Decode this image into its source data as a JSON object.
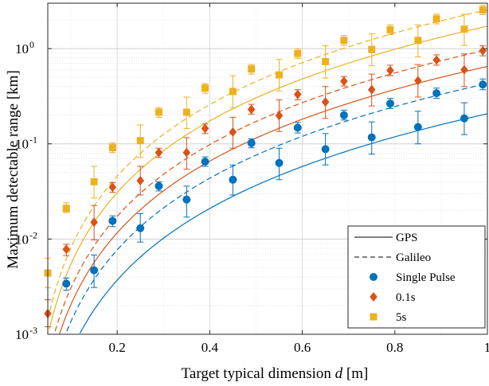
{
  "chart_data": {
    "type": "scatter",
    "xlabel_prefix": "Target typical dimension ",
    "xlabel_var": "d",
    "xlabel_suffix": " [m]",
    "ylabel": "Maximum detectable range [km]",
    "xlim": [
      0.05,
      1.0
    ],
    "ylim": [
      0.001,
      3.0
    ],
    "yscale": "log",
    "grid": true,
    "legend_position": "lower-right",
    "xticks": [
      0.2,
      0.4,
      0.6,
      0.8,
      1.0
    ],
    "xtick_labels": [
      "0.2",
      "0.4",
      "0.6",
      "0.8",
      "1"
    ],
    "yticks": [
      0.001,
      0.01,
      0.1,
      1
    ],
    "ytick_base": [
      "10",
      "10",
      "10",
      "10"
    ],
    "ytick_exp": [
      "-3",
      "-2",
      "-1",
      "0"
    ],
    "colors": {
      "single": "#0072BD",
      "tenth": "#D95319",
      "five": "#EDB120"
    },
    "legend": [
      {
        "label": "GPS",
        "kind": "solid-line"
      },
      {
        "label": "Galileo",
        "kind": "dashed-line"
      },
      {
        "label": "Single Pulse",
        "kind": "circle",
        "color": "#0072BD"
      },
      {
        "label": "0.1s",
        "kind": "diamond",
        "color": "#D95319"
      },
      {
        "label": "5s",
        "kind": "square",
        "color": "#EDB120"
      }
    ],
    "curves": [
      {
        "name": "GPS",
        "style": "solid",
        "color": "#0072BD",
        "coef": 0.207,
        "exp": 2.5
      },
      {
        "name": "Galileo",
        "style": "dashed",
        "color": "#0072BD",
        "coef": 0.43,
        "exp": 2.5
      },
      {
        "name": "GPS",
        "style": "solid",
        "color": "#D95319",
        "coef": 0.65,
        "exp": 2.5
      },
      {
        "name": "Galileo",
        "style": "dashed",
        "color": "#D95319",
        "coef": 0.97,
        "exp": 2.5
      },
      {
        "name": "GPS",
        "style": "solid",
        "color": "#EDB120",
        "coef": 1.72,
        "exp": 2.5
      },
      {
        "name": "Galileo",
        "style": "dashed",
        "color": "#EDB120",
        "coef": 2.55,
        "exp": 2.5
      }
    ],
    "series": [
      {
        "name": "Single Pulse",
        "marker": "circle",
        "color": "#0072BD",
        "points": [
          {
            "x": 0.09,
            "y": 0.0034,
            "lo": 0.0029,
            "hi": 0.0039
          },
          {
            "x": 0.15,
            "y": 0.0047,
            "lo": 0.0031,
            "hi": 0.0068
          },
          {
            "x": 0.19,
            "y": 0.0155,
            "lo": 0.0135,
            "hi": 0.0175
          },
          {
            "x": 0.25,
            "y": 0.013,
            "lo": 0.0093,
            "hi": 0.0185
          },
          {
            "x": 0.29,
            "y": 0.036,
            "lo": 0.032,
            "hi": 0.04
          },
          {
            "x": 0.35,
            "y": 0.026,
            "lo": 0.017,
            "hi": 0.036
          },
          {
            "x": 0.39,
            "y": 0.065,
            "lo": 0.058,
            "hi": 0.073
          },
          {
            "x": 0.45,
            "y": 0.042,
            "lo": 0.029,
            "hi": 0.06
          },
          {
            "x": 0.49,
            "y": 0.102,
            "lo": 0.091,
            "hi": 0.113
          },
          {
            "x": 0.55,
            "y": 0.063,
            "lo": 0.042,
            "hi": 0.09
          },
          {
            "x": 0.59,
            "y": 0.148,
            "lo": 0.13,
            "hi": 0.168
          },
          {
            "x": 0.65,
            "y": 0.088,
            "lo": 0.06,
            "hi": 0.128
          },
          {
            "x": 0.69,
            "y": 0.2,
            "lo": 0.178,
            "hi": 0.226
          },
          {
            "x": 0.75,
            "y": 0.117,
            "lo": 0.078,
            "hi": 0.17
          },
          {
            "x": 0.79,
            "y": 0.265,
            "lo": 0.235,
            "hi": 0.3
          },
          {
            "x": 0.85,
            "y": 0.15,
            "lo": 0.1,
            "hi": 0.22
          },
          {
            "x": 0.89,
            "y": 0.34,
            "lo": 0.3,
            "hi": 0.385
          },
          {
            "x": 0.95,
            "y": 0.185,
            "lo": 0.125,
            "hi": 0.27
          },
          {
            "x": 0.99,
            "y": 0.42,
            "lo": 0.37,
            "hi": 0.48
          }
        ]
      },
      {
        "name": "0.1s",
        "marker": "diamond",
        "color": "#D95319",
        "points": [
          {
            "x": 0.05,
            "y": 0.00165,
            "lo": 0.0012,
            "hi": 0.0023
          },
          {
            "x": 0.09,
            "y": 0.0078,
            "lo": 0.0067,
            "hi": 0.0088
          },
          {
            "x": 0.15,
            "y": 0.015,
            "lo": 0.0098,
            "hi": 0.0225
          },
          {
            "x": 0.19,
            "y": 0.035,
            "lo": 0.031,
            "hi": 0.039
          },
          {
            "x": 0.25,
            "y": 0.041,
            "lo": 0.029,
            "hi": 0.058
          },
          {
            "x": 0.29,
            "y": 0.081,
            "lo": 0.072,
            "hi": 0.09
          },
          {
            "x": 0.35,
            "y": 0.081,
            "lo": 0.054,
            "hi": 0.116
          },
          {
            "x": 0.39,
            "y": 0.145,
            "lo": 0.128,
            "hi": 0.162
          },
          {
            "x": 0.45,
            "y": 0.133,
            "lo": 0.09,
            "hi": 0.19
          },
          {
            "x": 0.49,
            "y": 0.23,
            "lo": 0.205,
            "hi": 0.26
          },
          {
            "x": 0.55,
            "y": 0.198,
            "lo": 0.135,
            "hi": 0.29
          },
          {
            "x": 0.59,
            "y": 0.33,
            "lo": 0.29,
            "hi": 0.37
          },
          {
            "x": 0.65,
            "y": 0.275,
            "lo": 0.185,
            "hi": 0.4
          },
          {
            "x": 0.69,
            "y": 0.455,
            "lo": 0.405,
            "hi": 0.51
          },
          {
            "x": 0.75,
            "y": 0.37,
            "lo": 0.25,
            "hi": 0.54
          },
          {
            "x": 0.79,
            "y": 0.59,
            "lo": 0.52,
            "hi": 0.67
          },
          {
            "x": 0.85,
            "y": 0.46,
            "lo": 0.31,
            "hi": 0.68
          },
          {
            "x": 0.89,
            "y": 0.76,
            "lo": 0.67,
            "hi": 0.86
          },
          {
            "x": 0.95,
            "y": 0.6,
            "lo": 0.4,
            "hi": 0.88
          },
          {
            "x": 0.99,
            "y": 0.95,
            "lo": 0.84,
            "hi": 1.07
          }
        ]
      },
      {
        "name": "5s",
        "marker": "square",
        "color": "#EDB120",
        "points": [
          {
            "x": 0.05,
            "y": 0.0044,
            "lo": 0.0031,
            "hi": 0.0063
          },
          {
            "x": 0.09,
            "y": 0.021,
            "lo": 0.019,
            "hi": 0.024
          },
          {
            "x": 0.15,
            "y": 0.04,
            "lo": 0.027,
            "hi": 0.058
          },
          {
            "x": 0.19,
            "y": 0.091,
            "lo": 0.081,
            "hi": 0.102
          },
          {
            "x": 0.25,
            "y": 0.108,
            "lo": 0.072,
            "hi": 0.158
          },
          {
            "x": 0.29,
            "y": 0.215,
            "lo": 0.19,
            "hi": 0.24
          },
          {
            "x": 0.35,
            "y": 0.215,
            "lo": 0.145,
            "hi": 0.31
          },
          {
            "x": 0.39,
            "y": 0.385,
            "lo": 0.34,
            "hi": 0.43
          },
          {
            "x": 0.45,
            "y": 0.355,
            "lo": 0.24,
            "hi": 0.52
          },
          {
            "x": 0.49,
            "y": 0.61,
            "lo": 0.54,
            "hi": 0.68
          },
          {
            "x": 0.55,
            "y": 0.53,
            "lo": 0.36,
            "hi": 0.77
          },
          {
            "x": 0.59,
            "y": 0.89,
            "lo": 0.79,
            "hi": 1.0
          },
          {
            "x": 0.65,
            "y": 0.73,
            "lo": 0.49,
            "hi": 1.07
          },
          {
            "x": 0.69,
            "y": 1.22,
            "lo": 1.08,
            "hi": 1.37
          },
          {
            "x": 0.75,
            "y": 0.98,
            "lo": 0.66,
            "hi": 1.43
          },
          {
            "x": 0.79,
            "y": 1.58,
            "lo": 1.4,
            "hi": 1.78
          },
          {
            "x": 0.85,
            "y": 1.22,
            "lo": 0.82,
            "hi": 1.78
          },
          {
            "x": 0.89,
            "y": 2.05,
            "lo": 1.82,
            "hi": 2.3
          },
          {
            "x": 0.95,
            "y": 1.6,
            "lo": 1.08,
            "hi": 2.3
          },
          {
            "x": 0.99,
            "y": 2.55,
            "lo": 2.27,
            "hi": 2.85
          }
        ]
      }
    ]
  }
}
